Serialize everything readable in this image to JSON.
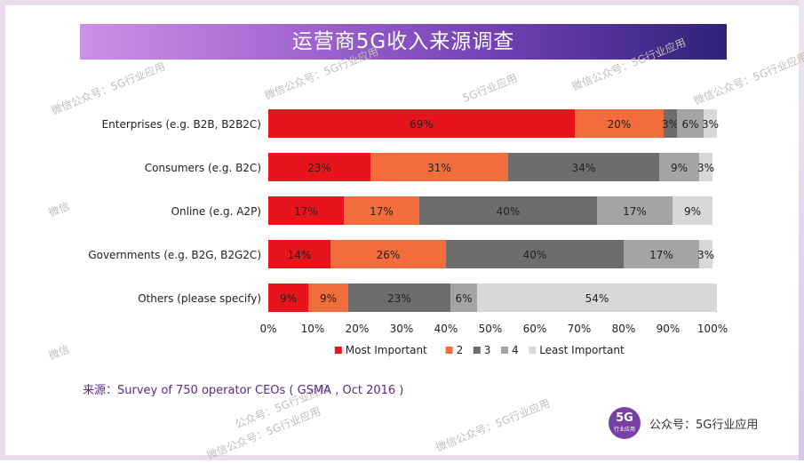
{
  "banner": {
    "title": "运营商5G收入来源调查",
    "gradient": [
      "#cd90e7",
      "#7040b3",
      "#2f2278"
    ]
  },
  "chart_data": {
    "type": "bar",
    "orientation": "horizontal",
    "stacked": true,
    "categories": [
      "Enterprises (e.g. B2B, B2B2C)",
      "Consumers (e.g. B2C)",
      "Online (e.g. A2P)",
      "Governments (e.g. B2G, B2G2C)",
      "Others (please specify)"
    ],
    "series": [
      {
        "name": "Most Important",
        "color": "#e8141c",
        "values": [
          69,
          23,
          17,
          14,
          9
        ]
      },
      {
        "name": "2",
        "color": "#f26c3c",
        "values": [
          20,
          31,
          17,
          26,
          9
        ]
      },
      {
        "name": "3",
        "color": "#6d6d6d",
        "values": [
          3,
          34,
          40,
          40,
          23
        ]
      },
      {
        "name": "4",
        "color": "#a4a4a4",
        "values": [
          6,
          9,
          17,
          17,
          6
        ]
      },
      {
        "name": "Least Important",
        "color": "#d8d8d8",
        "values": [
          3,
          3,
          9,
          3,
          54
        ]
      }
    ],
    "labels": [
      [
        "69%",
        "20%",
        "3%",
        "6%",
        "3%"
      ],
      [
        "23%",
        "31%",
        "34%",
        "9%",
        "3%"
      ],
      [
        "17%",
        "17%",
        "40%",
        "17%",
        "9%"
      ],
      [
        "14%",
        "26%",
        "40%",
        "17%",
        "3%"
      ],
      [
        "9%",
        "9%",
        "23%",
        "6%",
        "54%"
      ]
    ],
    "xlim": [
      0,
      100
    ],
    "xticks": [
      "0%",
      "10%",
      "20%",
      "30%",
      "40%",
      "50%",
      "60%",
      "70%",
      "80%",
      "90%",
      "100%"
    ],
    "legend_position": "bottom",
    "grid": false
  },
  "source": "来源：Survey of 750 operator CEOs ( GSMA , Oct 2016 )",
  "badge": {
    "main": "5G",
    "sub": "行业应用"
  },
  "brand": "公众号：5G行业应用",
  "watermarks": [
    "微信公众号：5G行业应用",
    "微信公众号：5G行业应用",
    "5G行业应用",
    "微信公众号：5G行业应用",
    "微信公众号：5G行业应用",
    "微信",
    "微信",
    "公众号：5G行业应用",
    "微信公众号：5G行业应用",
    "微信公众号：5G行业应用"
  ]
}
